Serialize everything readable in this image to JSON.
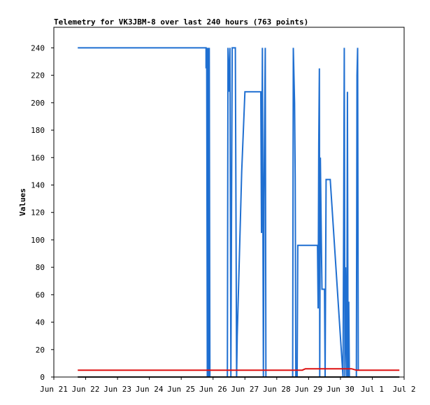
{
  "chart_data": {
    "type": "line",
    "title": "Telemetry for VK3JBM-8 over last 240 hours (763 points)",
    "xlabel": "",
    "ylabel": "Values",
    "ylim": [
      0,
      255
    ],
    "xlim": [
      0,
      11
    ],
    "y_ticks": [
      0,
      20,
      40,
      60,
      80,
      100,
      120,
      140,
      160,
      180,
      200,
      220,
      240
    ],
    "x_ticks": [
      {
        "x": 0,
        "label": "Jun 21"
      },
      {
        "x": 1,
        "label": "Jun 22"
      },
      {
        "x": 2,
        "label": "Jun 23"
      },
      {
        "x": 3,
        "label": "Jun 24"
      },
      {
        "x": 4,
        "label": "Jun 25"
      },
      {
        "x": 5,
        "label": "Jun 26"
      },
      {
        "x": 6,
        "label": "Jun 27"
      },
      {
        "x": 7,
        "label": "Jun 28"
      },
      {
        "x": 8,
        "label": "Jun 29"
      },
      {
        "x": 9,
        "label": "Jun 30"
      },
      {
        "x": 10,
        "label": "Jul 1"
      },
      {
        "x": 11,
        "label": "Jul 2"
      }
    ],
    "grid": false,
    "legend": "none",
    "series": [
      {
        "color": "#1f6fd1",
        "points": [
          [
            0.75,
            240
          ],
          [
            4.78,
            240
          ],
          [
            4.78,
            225
          ],
          [
            4.8,
            240
          ],
          [
            4.82,
            0
          ],
          [
            4.84,
            240
          ],
          [
            4.86,
            0
          ],
          [
            4.88,
            240
          ],
          [
            4.9,
            0
          ],
          [
            4.92,
            0
          ],
          [
            5.45,
            0
          ],
          [
            5.47,
            240
          ],
          [
            5.5,
            208
          ],
          [
            5.53,
            240
          ],
          [
            5.56,
            0
          ],
          [
            5.6,
            240
          ],
          [
            5.7,
            240
          ],
          [
            5.72,
            120
          ],
          [
            5.74,
            0
          ],
          [
            5.76,
            30
          ],
          [
            5.9,
            150
          ],
          [
            6.0,
            208
          ],
          [
            6.5,
            208
          ],
          [
            6.52,
            105
          ],
          [
            6.55,
            240
          ],
          [
            6.58,
            0
          ],
          [
            6.6,
            130
          ],
          [
            6.64,
            240
          ],
          [
            6.66,
            0
          ],
          [
            7.5,
            0
          ],
          [
            7.52,
            240
          ],
          [
            7.56,
            200
          ],
          [
            7.58,
            145
          ],
          [
            7.6,
            0
          ],
          [
            7.64,
            0
          ],
          [
            7.66,
            96
          ],
          [
            8.28,
            96
          ],
          [
            8.3,
            50
          ],
          [
            8.32,
            170
          ],
          [
            8.34,
            225
          ],
          [
            8.35,
            0
          ],
          [
            8.37,
            160
          ],
          [
            8.4,
            100
          ],
          [
            8.42,
            64
          ],
          [
            8.5,
            64
          ],
          [
            8.52,
            0
          ],
          [
            8.55,
            144
          ],
          [
            8.68,
            144
          ],
          [
            9.08,
            0
          ],
          [
            9.1,
            110
          ],
          [
            9.12,
            240
          ],
          [
            9.14,
            0
          ],
          [
            9.16,
            80
          ],
          [
            9.18,
            30
          ],
          [
            9.2,
            0
          ],
          [
            9.22,
            208
          ],
          [
            9.24,
            0
          ],
          [
            9.26,
            55
          ],
          [
            9.28,
            0
          ],
          [
            9.5,
            0
          ],
          [
            9.52,
            220
          ],
          [
            9.54,
            240
          ],
          [
            9.56,
            5
          ]
        ]
      },
      {
        "color": "#dd1111",
        "points": [
          [
            0.75,
            5
          ],
          [
            7.8,
            5
          ],
          [
            7.9,
            6
          ],
          [
            9.35,
            6
          ],
          [
            9.5,
            5
          ],
          [
            10.85,
            5
          ]
        ]
      },
      {
        "color": "#111111",
        "points": [
          [
            0.75,
            0
          ],
          [
            10.85,
            0
          ]
        ]
      }
    ]
  }
}
